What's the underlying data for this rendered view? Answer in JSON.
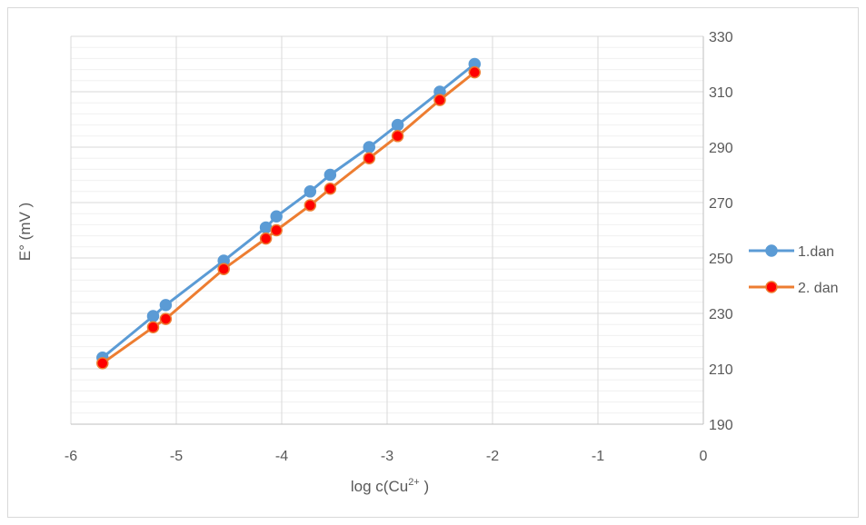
{
  "chart_data": {
    "type": "line",
    "xlabel_main": "log c(Cu",
    "xlabel_sup": "2+",
    "xlabel_end": " )",
    "ylabel": "E° (mV )",
    "xlim": [
      -6,
      0
    ],
    "ylim": [
      190,
      330
    ],
    "x_ticks": [
      "-6",
      "-5",
      "-4",
      "-3",
      "-2",
      "-1",
      "0"
    ],
    "y_ticks": [
      "190",
      "210",
      "230",
      "250",
      "270",
      "290",
      "310",
      "330"
    ],
    "y_axis_side": "right",
    "grid": true,
    "legend_position": "right",
    "series": [
      {
        "name": "1.dan",
        "color": "#5b9bd5",
        "marker_fill": "#5b9bd5",
        "marker_stroke": "#5b9bd5",
        "x": [
          -5.7,
          -5.22,
          -5.1,
          -4.55,
          -4.15,
          -4.05,
          -3.73,
          -3.54,
          -3.17,
          -2.9,
          -2.5,
          -2.17
        ],
        "y": [
          214,
          229,
          233,
          249,
          261,
          265,
          274,
          280,
          290,
          298,
          310,
          320
        ]
      },
      {
        "name": "2. dan",
        "color": "#ed7d31",
        "marker_fill": "#ff0000",
        "marker_stroke": "#ed7d31",
        "x": [
          -5.7,
          -5.22,
          -5.1,
          -4.55,
          -4.15,
          -4.05,
          -3.73,
          -3.54,
          -3.17,
          -2.9,
          -2.5,
          -2.17
        ],
        "y": [
          212,
          225,
          228,
          246,
          257,
          260,
          269,
          275,
          286,
          294,
          307,
          317
        ]
      }
    ]
  }
}
